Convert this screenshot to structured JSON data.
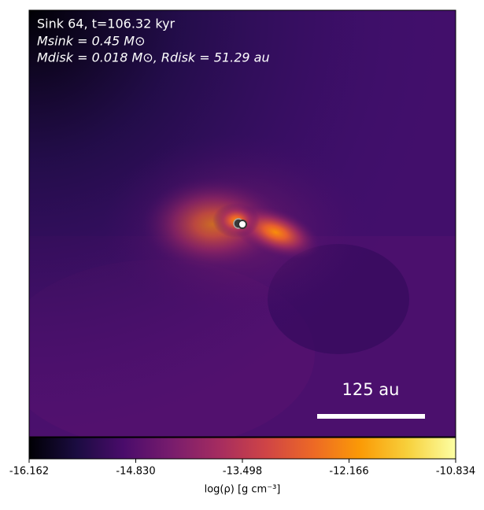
{
  "chart_data": {
    "type": "image",
    "annotations": [
      "Sink 64, t=106.32 kyr",
      "Msink = 0.45 M⊙",
      "Mdisk = 0.018 M⊙, Rdisk = 51.29 au"
    ],
    "scalebar_label": "125 au",
    "colorbar": {
      "label": "log(ρ) [g cm⁻³]",
      "colormap": "inferno",
      "lim": [
        -16.162,
        -10.834
      ],
      "ticks": [
        -16.162,
        {
          "value": -14.83,
          "label": "-14.830"
        },
        -13.498,
        -12.166,
        -10.834
      ]
    }
  }
}
